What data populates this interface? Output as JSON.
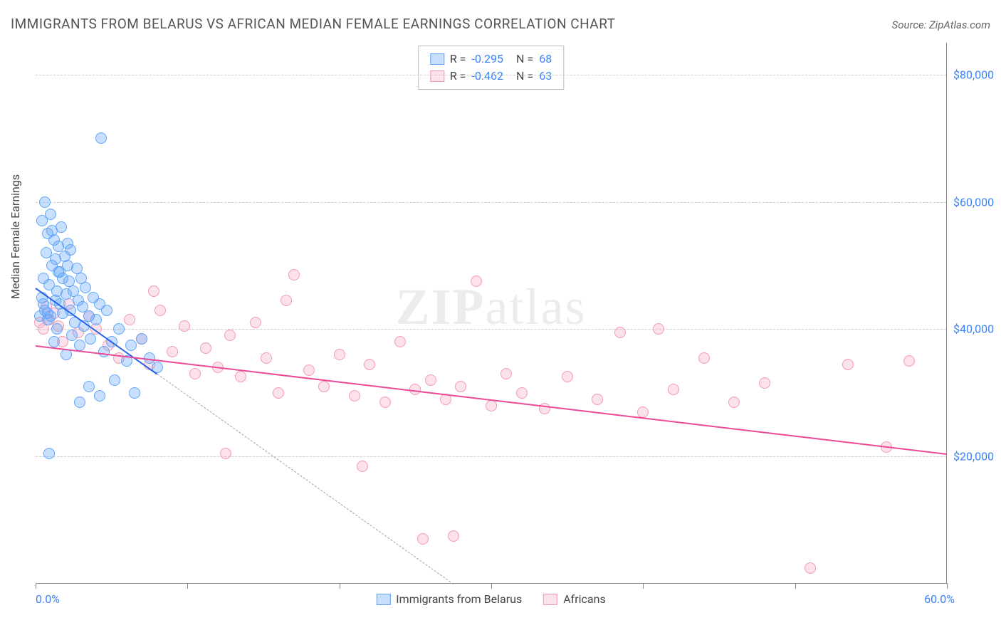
{
  "title": "IMMIGRANTS FROM BELARUS VS AFRICAN MEDIAN FEMALE EARNINGS CORRELATION CHART",
  "source": "Source: ZipAtlas.com",
  "y_axis_label": "Median Female Earnings",
  "watermark_prefix": "ZIP",
  "watermark_suffix": "atlas",
  "chart": {
    "type": "scatter",
    "background_color": "#ffffff",
    "grid_color": "#cccccc",
    "axis_color": "#888888",
    "xlim": [
      0,
      60
    ],
    "ylim": [
      0,
      85000
    ],
    "x_tick_step": 10,
    "x_min_label": "0.0%",
    "x_max_label": "60.0%",
    "y_ticks": [
      {
        "value": 20000,
        "label": "$20,000"
      },
      {
        "value": 40000,
        "label": "$40,000"
      },
      {
        "value": 60000,
        "label": "$60,000"
      },
      {
        "value": 80000,
        "label": "$80,000"
      }
    ],
    "tick_label_color": "#3b82f6",
    "tick_label_fontsize": 16,
    "marker_radius": 8,
    "marker_stroke_width": 1.5
  },
  "series": {
    "belarus": {
      "label": "Immigrants from Belarus",
      "fill_color": "rgba(96,165,250,0.35)",
      "stroke_color": "#60a5fa",
      "line_color": "#2563eb",
      "dash_color": "#9ca3af",
      "r_value": "-0.295",
      "n_value": "68",
      "trend": {
        "x1": 0,
        "y1": 46500,
        "x2": 8,
        "y2": 33000
      },
      "trend_dash": {
        "x1": 8,
        "y1": 33000,
        "x2": 27.5,
        "y2": 0
      },
      "points": [
        [
          0.3,
          42000
        ],
        [
          0.4,
          45000
        ],
        [
          0.5,
          48000
        ],
        [
          0.5,
          44000
        ],
        [
          0.6,
          60000
        ],
        [
          0.6,
          43000
        ],
        [
          0.7,
          52000
        ],
        [
          0.8,
          41500
        ],
        [
          0.8,
          55000
        ],
        [
          0.9,
          47000
        ],
        [
          1.0,
          58000
        ],
        [
          1.0,
          42000
        ],
        [
          1.1,
          50000
        ],
        [
          1.2,
          54000
        ],
        [
          1.2,
          38000
        ],
        [
          1.3,
          51000
        ],
        [
          1.4,
          46000
        ],
        [
          1.4,
          40000
        ],
        [
          1.5,
          49000
        ],
        [
          1.5,
          53000
        ],
        [
          1.6,
          44000
        ],
        [
          1.7,
          56000
        ],
        [
          1.8,
          48000
        ],
        [
          1.8,
          42500
        ],
        [
          1.9,
          51500
        ],
        [
          2.0,
          45500
        ],
        [
          2.0,
          36000
        ],
        [
          2.1,
          50000
        ],
        [
          2.2,
          47500
        ],
        [
          2.3,
          43000
        ],
        [
          2.3,
          52500
        ],
        [
          2.4,
          39000
        ],
        [
          2.5,
          46000
        ],
        [
          2.6,
          41000
        ],
        [
          2.7,
          49500
        ],
        [
          2.8,
          44500
        ],
        [
          2.9,
          37500
        ],
        [
          3.0,
          48000
        ],
        [
          3.1,
          43500
        ],
        [
          3.2,
          40500
        ],
        [
          3.3,
          46500
        ],
        [
          3.5,
          42000
        ],
        [
          3.6,
          38500
        ],
        [
          3.8,
          45000
        ],
        [
          4.0,
          41500
        ],
        [
          4.2,
          44000
        ],
        [
          4.3,
          70000
        ],
        [
          4.5,
          36500
        ],
        [
          4.7,
          43000
        ],
        [
          5.0,
          38000
        ],
        [
          5.2,
          32000
        ],
        [
          5.5,
          40000
        ],
        [
          6.0,
          35000
        ],
        [
          6.3,
          37500
        ],
        [
          6.5,
          30000
        ],
        [
          7.0,
          38500
        ],
        [
          7.5,
          35500
        ],
        [
          8.0,
          34000
        ],
        [
          0.8,
          42500
        ],
        [
          1.3,
          44500
        ],
        [
          1.6,
          49000
        ],
        [
          2.1,
          53500
        ],
        [
          0.4,
          57000
        ],
        [
          1.1,
          55500
        ],
        [
          0.9,
          20500
        ],
        [
          2.9,
          28500
        ],
        [
          4.2,
          29500
        ],
        [
          3.5,
          31000
        ]
      ]
    },
    "africans": {
      "label": "Africans",
      "fill_color": "rgba(248,180,200,0.38)",
      "stroke_color": "#f19ab5",
      "line_color": "#ec4899",
      "r_value": "-0.462",
      "n_value": "63",
      "trend": {
        "x1": 0,
        "y1": 37500,
        "x2": 60,
        "y2": 20500
      },
      "points": [
        [
          0.3,
          41000
        ],
        [
          0.5,
          40000
        ],
        [
          0.7,
          43500
        ],
        [
          0.9,
          41500
        ],
        [
          1.2,
          42500
        ],
        [
          1.5,
          40500
        ],
        [
          1.8,
          38000
        ],
        [
          2.2,
          44000
        ],
        [
          2.8,
          39500
        ],
        [
          3.5,
          42000
        ],
        [
          4.0,
          40000
        ],
        [
          4.8,
          37500
        ],
        [
          5.5,
          35500
        ],
        [
          6.2,
          41500
        ],
        [
          7.0,
          38500
        ],
        [
          7.5,
          34500
        ],
        [
          8.2,
          43000
        ],
        [
          9.0,
          36500
        ],
        [
          9.8,
          40500
        ],
        [
          10.5,
          33000
        ],
        [
          11.2,
          37000
        ],
        [
          12.0,
          34000
        ],
        [
          12.8,
          39000
        ],
        [
          13.5,
          32500
        ],
        [
          14.5,
          41000
        ],
        [
          15.2,
          35500
        ],
        [
          16.0,
          30000
        ],
        [
          17.0,
          48500
        ],
        [
          18.0,
          33500
        ],
        [
          19.0,
          31000
        ],
        [
          20.0,
          36000
        ],
        [
          21.0,
          29500
        ],
        [
          22.0,
          34500
        ],
        [
          23.0,
          28500
        ],
        [
          24.0,
          38000
        ],
        [
          25.0,
          30500
        ],
        [
          26.0,
          32000
        ],
        [
          27.0,
          29000
        ],
        [
          28.0,
          31000
        ],
        [
          29.0,
          47500
        ],
        [
          30.0,
          28000
        ],
        [
          31.0,
          33000
        ],
        [
          32.0,
          30000
        ],
        [
          33.5,
          27500
        ],
        [
          35.0,
          32500
        ],
        [
          37.0,
          29000
        ],
        [
          38.5,
          39500
        ],
        [
          40.0,
          27000
        ],
        [
          42.0,
          30500
        ],
        [
          41.0,
          40000
        ],
        [
          44.0,
          35500
        ],
        [
          46.0,
          28500
        ],
        [
          48.0,
          31500
        ],
        [
          53.5,
          34500
        ],
        [
          56.0,
          21500
        ],
        [
          57.5,
          35000
        ],
        [
          12.5,
          20500
        ],
        [
          21.5,
          18500
        ],
        [
          16.5,
          44500
        ],
        [
          25.5,
          7000
        ],
        [
          27.5,
          7500
        ],
        [
          51.0,
          2500
        ],
        [
          7.8,
          46000
        ]
      ]
    }
  }
}
